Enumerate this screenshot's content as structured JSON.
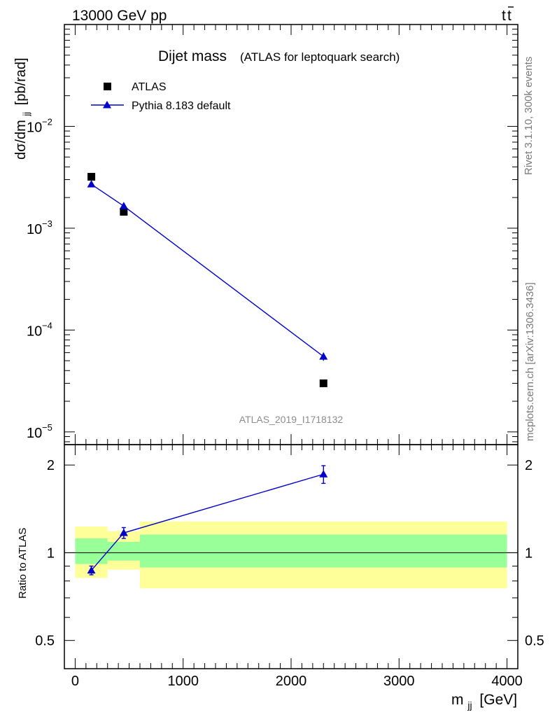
{
  "header": {
    "left": "13000 GeV pp",
    "right_base": "t",
    "right_bar": "t",
    "side_top": "Rivet 3.1.10,  300k events",
    "side_bottom": "mcplots.cern.ch [arXiv:1306.3436]"
  },
  "chart_data": [
    {
      "type": "scatter",
      "title": "Dijet mass",
      "subtitle": "(ATLAS for leptoquark search)",
      "analysis_id": "ATLAS_2019_I1718132",
      "ylabel": "dσ/dm_jj [pb/rad]",
      "ylabel_main": "dσ/dm",
      "ylabel_sub": "jj",
      "ylabel_unit": "[pb/rad]",
      "yscale": "log",
      "ylim": [
        7.5e-06,
        0.1
      ],
      "xlim": [
        -100,
        4100
      ],
      "yticks": [
        {
          "value": 0.01,
          "base": "10",
          "exp": "−2"
        },
        {
          "value": 0.001,
          "base": "10",
          "exp": "−3"
        },
        {
          "value": 0.0001,
          "base": "10",
          "exp": "−4"
        },
        {
          "value": 1e-05,
          "base": "10",
          "exp": "−5"
        }
      ],
      "legend": {
        "position": "top-left",
        "entries": [
          "ATLAS",
          "Pythia 8.183 default"
        ]
      },
      "series": [
        {
          "name": "ATLAS",
          "marker": "square",
          "color": "#000000",
          "x": [
            150,
            450,
            2300
          ],
          "y": [
            0.0032,
            0.00145,
            3e-05
          ]
        },
        {
          "name": "Pythia 8.183 default",
          "marker": "triangle",
          "color": "#0000cc",
          "x": [
            150,
            450,
            2300
          ],
          "y": [
            0.0027,
            0.00165,
            5.5e-05
          ],
          "yerr": [
            8e-05,
            8e-05,
            5e-06
          ]
        }
      ]
    },
    {
      "type": "scatter",
      "ylabel": "Ratio to ATLAS",
      "xlabel": "m_jj [GeV]",
      "xlabel_main": "m",
      "xlabel_sub": "jj",
      "xlabel_unit": "[GeV]",
      "yscale": "log",
      "ylim": [
        0.4,
        2.35
      ],
      "xlim": [
        -100,
        4100
      ],
      "yticks": [
        {
          "value": 2,
          "label": "2"
        },
        {
          "value": 1,
          "label": "1"
        },
        {
          "value": 0.5,
          "label": "0.5"
        }
      ],
      "xticks": [
        {
          "value": 0,
          "label": "0"
        },
        {
          "value": 1000,
          "label": "1000"
        },
        {
          "value": 2000,
          "label": "2000"
        },
        {
          "value": 3000,
          "label": "3000"
        },
        {
          "value": 4000,
          "label": "4000"
        }
      ],
      "bands": [
        {
          "x0": 0,
          "x1": 300,
          "inner": [
            0.915,
            1.12
          ],
          "outer": [
            0.82,
            1.23
          ]
        },
        {
          "x0": 300,
          "x1": 600,
          "inner": [
            0.94,
            1.09
          ],
          "outer": [
            0.875,
            1.185
          ]
        },
        {
          "x0": 600,
          "x1": 4000,
          "inner": [
            0.89,
            1.155
          ],
          "outer": [
            0.755,
            1.28
          ]
        }
      ],
      "band_colors": {
        "inner": "#99ff99",
        "outer": "#ffff99"
      },
      "series": [
        {
          "name": "Pythia 8.183 default / ATLAS",
          "marker": "triangle",
          "color": "#0000cc",
          "x": [
            150,
            450,
            2300
          ],
          "y": [
            0.87,
            1.17,
            1.86
          ],
          "yerr": [
            0.03,
            0.05,
            0.13
          ]
        }
      ]
    }
  ]
}
